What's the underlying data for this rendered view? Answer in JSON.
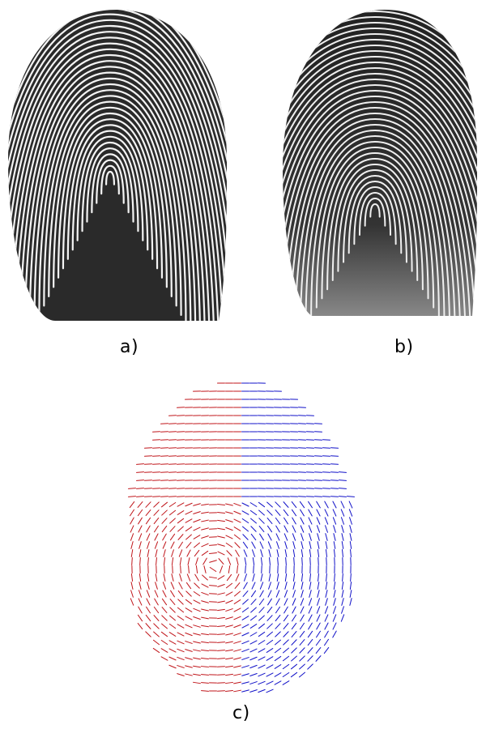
{
  "figure": {
    "panels": [
      {
        "id": "a",
        "caption": "a)",
        "content": "fingerprint-image-1"
      },
      {
        "id": "b",
        "caption": "b)",
        "content": "fingerprint-image-2"
      },
      {
        "id": "c",
        "caption": "c)",
        "content": "orientation-field-overlay"
      }
    ]
  },
  "colors": {
    "ridge": "#1a1a1a",
    "paper": "#ffffff",
    "field_a": "#c0151a",
    "field_b": "#1010c8"
  }
}
